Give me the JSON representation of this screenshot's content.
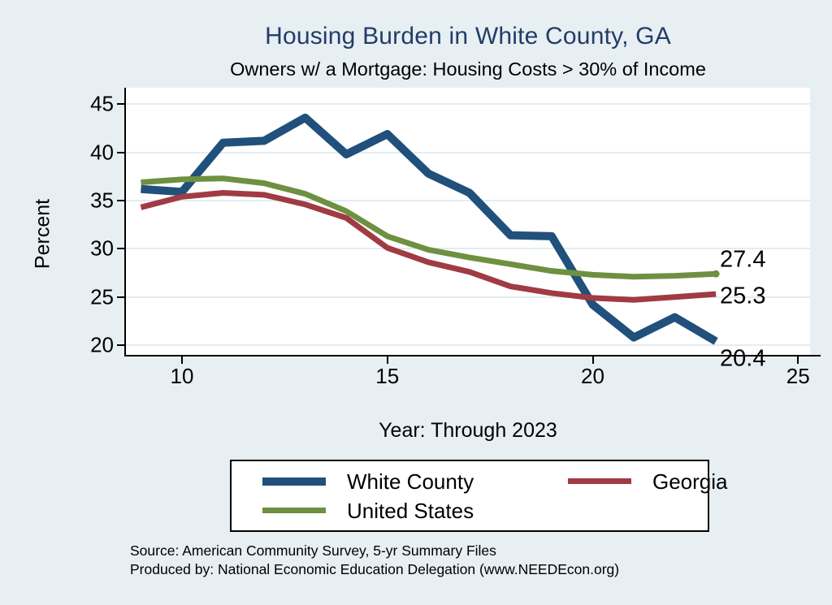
{
  "title": "Housing Burden in White County, GA",
  "subtitle": "Owners w/ a Mortgage: Housing Costs > 30% of Income",
  "footer": {
    "source_line": "Source: American Community Survey, 5-yr Summary Files",
    "produced_line": "Produced by: National Economic Education Delegation (www.NEEDEcon.org)"
  },
  "colors": {
    "background": "#e7eff3",
    "plot_background": "#ffffff",
    "gridline": "#e2edf3",
    "axis": "#000000",
    "title_navy": "#233c68",
    "white_county_blue": "#20507b",
    "georgia_red": "#a03b44",
    "united_states_green": "#6e9041"
  },
  "chart_data": {
    "type": "line",
    "title": "Housing Burden in White County, GA",
    "subtitle": "Owners w/ a Mortgage: Housing Costs > 30% of Income",
    "xlabel": "Year: Through 2023",
    "ylabel": "Percent",
    "grid": true,
    "legend_position": "bottom",
    "x": [
      2009,
      2010,
      2011,
      2012,
      2013,
      2014,
      2015,
      2016,
      2017,
      2018,
      2019,
      2020,
      2021,
      2022,
      2023
    ],
    "x_ticks": [
      2010,
      2015,
      2020,
      2025
    ],
    "x_tick_labels": [
      "10",
      "15",
      "20",
      "25"
    ],
    "y_ticks": [
      20,
      25,
      30,
      35,
      40,
      45
    ],
    "ylim": [
      18.5,
      46.5
    ],
    "xlim": [
      2008.6,
      2025.2
    ],
    "series": [
      {
        "name": "White County",
        "color": "#20507b",
        "line_width": 10,
        "values": [
          36.2,
          35.9,
          41.0,
          41.2,
          43.6,
          39.8,
          41.9,
          37.8,
          35.8,
          31.4,
          31.3,
          24.2,
          20.8,
          22.9,
          20.4
        ],
        "end_label": "20.4",
        "end_marker": false
      },
      {
        "name": "Georgia",
        "color": "#a03b44",
        "line_width": 7,
        "values": [
          34.3,
          35.4,
          35.8,
          35.6,
          34.6,
          33.2,
          30.1,
          28.6,
          27.6,
          26.1,
          25.4,
          24.9,
          24.7,
          25.0,
          25.3
        ],
        "end_label": "25.3",
        "end_marker": false
      },
      {
        "name": "United States",
        "color": "#6e9041",
        "line_width": 7,
        "values": [
          36.9,
          37.2,
          37.3,
          36.8,
          35.7,
          33.9,
          31.3,
          29.9,
          29.1,
          28.4,
          27.7,
          27.3,
          27.1,
          27.2,
          27.4
        ],
        "end_label": "27.4",
        "end_marker": true
      }
    ]
  },
  "legend": {
    "items": [
      {
        "label": "White County"
      },
      {
        "label": "Georgia"
      },
      {
        "label": "United States"
      }
    ]
  }
}
